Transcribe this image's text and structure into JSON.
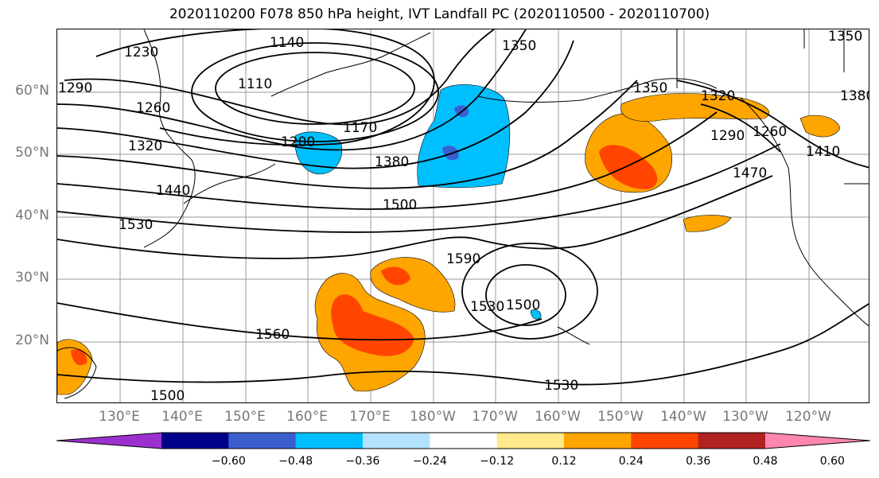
{
  "title": "2020110200 F078 850 hPa height, IVT Landfall PC (2020110500 - 2020110700)",
  "lat_labels": [
    "60°N",
    "50°N",
    "40°N",
    "30°N",
    "20°N"
  ],
  "lon_labels": [
    "130°E",
    "140°E",
    "150°E",
    "160°E",
    "170°E",
    "180°W",
    "170°W",
    "160°W",
    "150°W",
    "140°W",
    "130°W",
    "120°W"
  ],
  "contour_labels": [
    "1230",
    "1140",
    "1110",
    "1290",
    "1260",
    "1320",
    "1170",
    "1200",
    "1380",
    "1440",
    "1500",
    "1530",
    "1590",
    "1500",
    "1530",
    "1560",
    "1530",
    "1500",
    "1350",
    "1350",
    "1320",
    "1380",
    "1290",
    "1260",
    "1410",
    "1470",
    "1350"
  ],
  "colorbar": {
    "ticks": [
      "−0.60",
      "−0.48",
      "−0.36",
      "−0.24",
      "−0.12",
      "0.12",
      "0.24",
      "0.36",
      "0.48",
      "0.60"
    ],
    "colors": [
      "#9b30d0",
      "#00008b",
      "#3a5fcd",
      "#00bfff",
      "#b2e2ff",
      "#ffffff",
      "#ffe98a",
      "#ffa500",
      "#ff4500",
      "#b22222",
      "#ff86b0"
    ]
  }
}
